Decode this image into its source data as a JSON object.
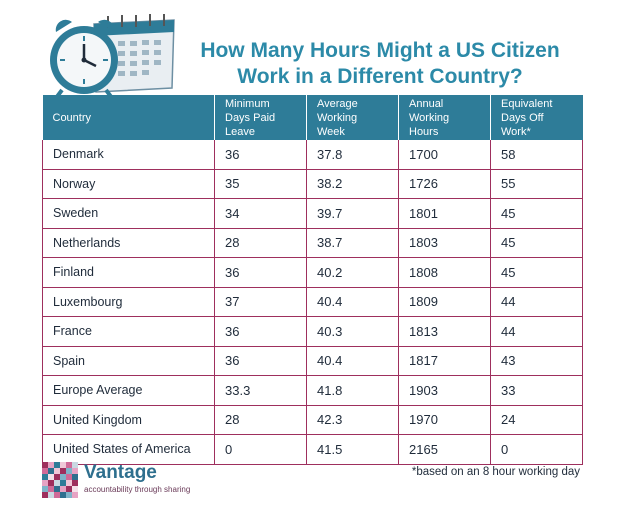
{
  "title_line1": "How Many Hours Might a US Citizen",
  "title_line2": "Work in a Different Country?",
  "headers": {
    "country": "Country",
    "min_days": "Minimum Days Paid Leave",
    "avg_week": "Average Working Week",
    "annual_hours": "Annual Working Hours",
    "equiv_days": "Equivalent Days Off Work*"
  },
  "rows": [
    {
      "country": "Denmark",
      "min_days": "36",
      "avg_week": "37.8",
      "annual_hours": "1700",
      "equiv_days": "58"
    },
    {
      "country": "Norway",
      "min_days": "35",
      "avg_week": "38.2",
      "annual_hours": "1726",
      "equiv_days": "55"
    },
    {
      "country": "Sweden",
      "min_days": "34",
      "avg_week": "39.7",
      "annual_hours": "1801",
      "equiv_days": "45"
    },
    {
      "country": "Netherlands",
      "min_days": "28",
      "avg_week": "38.7",
      "annual_hours": "1803",
      "equiv_days": "45"
    },
    {
      "country": "Finland",
      "min_days": "36",
      "avg_week": "40.2",
      "annual_hours": "1808",
      "equiv_days": "45"
    },
    {
      "country": "Luxembourg",
      "min_days": "37",
      "avg_week": "40.4",
      "annual_hours": "1809",
      "equiv_days": "44"
    },
    {
      "country": "France",
      "min_days": "36",
      "avg_week": "40.3",
      "annual_hours": "1813",
      "equiv_days": "44"
    },
    {
      "country": "Spain",
      "min_days": "36",
      "avg_week": "40.4",
      "annual_hours": "1817",
      "equiv_days": "43"
    },
    {
      "country": "Europe Average",
      "min_days": "33.3",
      "avg_week": "41.8",
      "annual_hours": "1903",
      "equiv_days": "33"
    },
    {
      "country": "United Kingdom",
      "min_days": "28",
      "avg_week": "42.3",
      "annual_hours": "1970",
      "equiv_days": "24"
    },
    {
      "country": "United States of America",
      "min_days": "0",
      "avg_week": "41.5",
      "annual_hours": "2165",
      "equiv_days": "0"
    }
  ],
  "footnote": "*based on an 8 hour working day",
  "brand": {
    "name": "Vantage",
    "tagline": "accountability through sharing"
  },
  "colors": {
    "header_bg": "#2e7c98",
    "title": "#2c8aa8",
    "row_border": "#9e2f5d"
  },
  "icons": [
    "alarm-clock-icon",
    "calendar-icon",
    "vantage-mosaic-logo"
  ]
}
